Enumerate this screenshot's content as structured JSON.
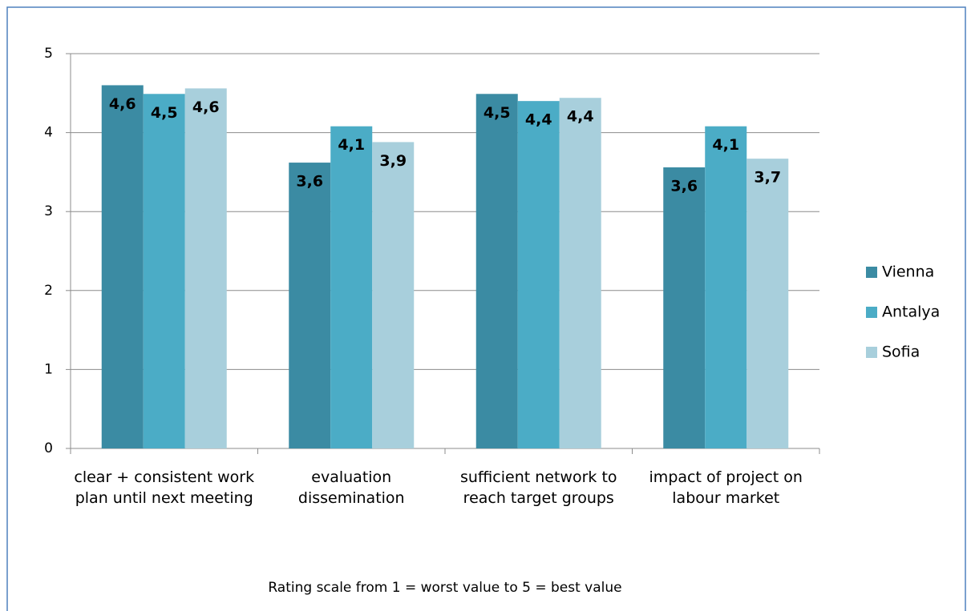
{
  "chart_data": {
    "type": "bar",
    "categories": [
      "clear + consistent work plan until next meeting",
      "evaluation dissemination",
      "sufficient network to reach target groups",
      "impact of project on labour market"
    ],
    "series": [
      {
        "name": "Vienna",
        "color": "#3b8ba3",
        "values": [
          4.6,
          3.62,
          4.49,
          3.56
        ],
        "value_labels": [
          "4,6",
          "3,6",
          "4,5",
          "3,6"
        ]
      },
      {
        "name": "Antalya",
        "color": "#4bacc6",
        "values": [
          4.49,
          4.08,
          4.4,
          4.08
        ],
        "value_labels": [
          "4,5",
          "4,1",
          "4,4",
          "4,1"
        ]
      },
      {
        "name": "Sofia",
        "color": "#a8cfdc",
        "values": [
          4.56,
          3.88,
          4.44,
          3.67
        ],
        "value_labels": [
          "4,6",
          "3,9",
          "4,4",
          "3,7"
        ]
      }
    ],
    "ylim": [
      0,
      5
    ],
    "yticks": [
      0,
      1,
      2,
      3,
      4,
      5
    ],
    "grid": true,
    "legend": "right",
    "note": "Rating scale from 1 = worst value to 5 = best value"
  }
}
